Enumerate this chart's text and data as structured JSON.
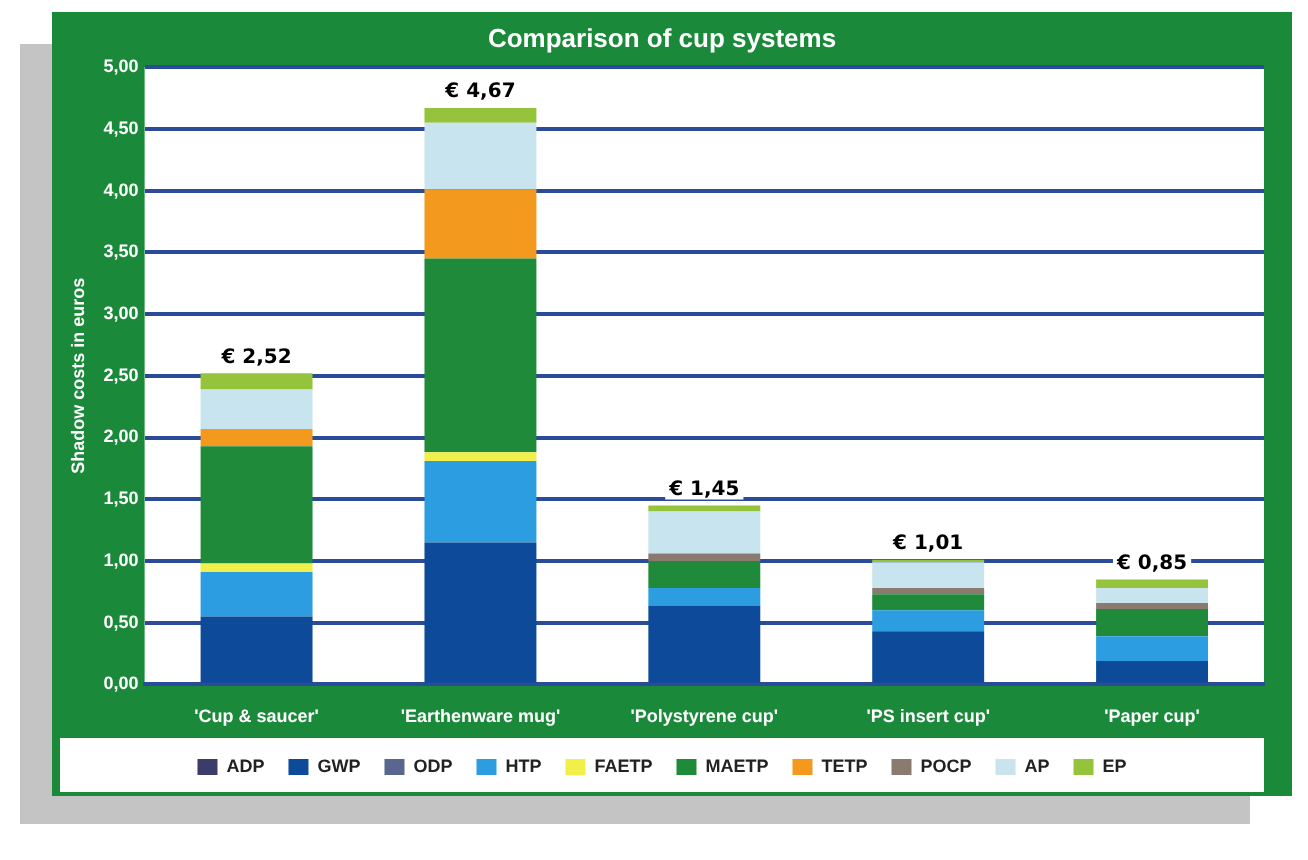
{
  "chart_data": {
    "type": "bar",
    "title": "Comparison of cup systems",
    "ylabel": "Shadow costs in euros",
    "categories": [
      "'Cup & saucer'",
      "'Earthenware mug'",
      "'Polystyrene cup'",
      "'PS insert cup'",
      "'Paper cup'"
    ],
    "stacked": true,
    "series": [
      {
        "name": "ADP",
        "color": "#3c3c6a",
        "values": [
          0,
          0,
          0,
          0,
          0
        ]
      },
      {
        "name": "GWP",
        "color": "#0d4a9a",
        "values": [
          0.55,
          1.15,
          0.64,
          0.43,
          0.19
        ]
      },
      {
        "name": "ODP",
        "color": "#5a6690",
        "values": [
          0,
          0,
          0,
          0,
          0
        ]
      },
      {
        "name": "HTP",
        "color": "#2b9de0",
        "values": [
          0.36,
          0.66,
          0.14,
          0.17,
          0.2
        ]
      },
      {
        "name": "FAETP",
        "color": "#f2ee4a",
        "values": [
          0.07,
          0.07,
          0,
          0,
          0
        ]
      },
      {
        "name": "MAETP",
        "color": "#1e8a3a",
        "values": [
          0.95,
          1.57,
          0.22,
          0.13,
          0.22
        ]
      },
      {
        "name": "TETP",
        "color": "#f39a1e",
        "values": [
          0.14,
          0.56,
          0,
          0,
          0
        ]
      },
      {
        "name": "POCP",
        "color": "#8a7a70",
        "values": [
          0,
          0,
          0.06,
          0.05,
          0.05
        ]
      },
      {
        "name": "AP",
        "color": "#c8e4ee",
        "values": [
          0.32,
          0.54,
          0.34,
          0.21,
          0.12
        ]
      },
      {
        "name": "EP",
        "color": "#96c33c",
        "values": [
          0.13,
          0.12,
          0.05,
          0.02,
          0.07
        ]
      }
    ],
    "totals": [
      "€ 2,52",
      "€ 4,67",
      "€ 1,45",
      "€ 1,01",
      "€ 0,85"
    ],
    "ylim": [
      0,
      5
    ],
    "yticks": [
      {
        "value": 0,
        "label": "0,00"
      },
      {
        "value": 0.5,
        "label": "0,50"
      },
      {
        "value": 1,
        "label": "1,00"
      },
      {
        "value": 1.5,
        "label": "1,50"
      },
      {
        "value": 2,
        "label": "2,00"
      },
      {
        "value": 2.5,
        "label": "2,50"
      },
      {
        "value": 3,
        "label": "3,00"
      },
      {
        "value": 3.5,
        "label": "3,50"
      },
      {
        "value": 4,
        "label": "4,00"
      },
      {
        "value": 4.5,
        "label": "4,50"
      },
      {
        "value": 5,
        "label": "5,00"
      }
    ],
    "grid": "y",
    "legend": "bottom"
  }
}
